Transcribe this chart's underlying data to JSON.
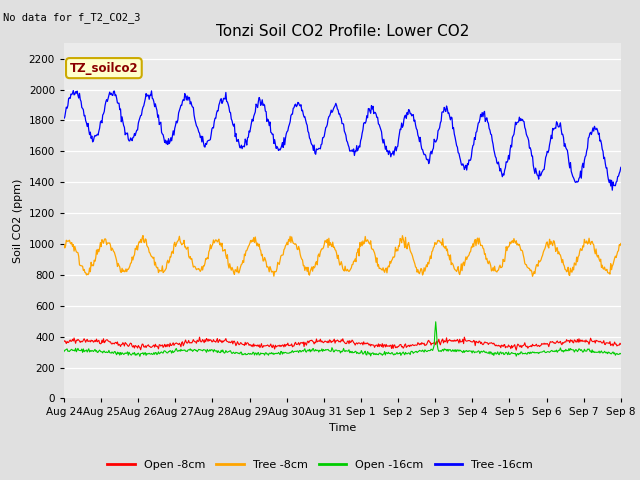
{
  "title": "Tonzi Soil CO2 Profile: Lower CO2",
  "subtitle": "No data for f_T2_CO2_3",
  "ylabel": "Soil CO2 (ppm)",
  "xlabel": "Time",
  "legend_label": "TZ_soilco2",
  "ylim": [
    0,
    2300
  ],
  "yticks": [
    0,
    200,
    400,
    600,
    800,
    1000,
    1200,
    1400,
    1600,
    1800,
    2000,
    2200
  ],
  "xtick_labels": [
    "Aug 24",
    "Aug 25",
    "Aug 26",
    "Aug 27",
    "Aug 28",
    "Aug 29",
    "Aug 30",
    "Aug 31",
    "Sep 1",
    "Sep 2",
    "Sep 3",
    "Sep 4",
    "Sep 5",
    "Sep 6",
    "Sep 7",
    "Sep 8"
  ],
  "series_labels": [
    "Open -8cm",
    "Tree -8cm",
    "Open -16cm",
    "Tree -16cm"
  ],
  "series_colors": [
    "#ff0000",
    "#ffa500",
    "#00cc00",
    "#0000ff"
  ],
  "background_color": "#e0e0e0",
  "plot_bg_color": "#ebebeb",
  "title_fontsize": 11,
  "label_fontsize": 8,
  "tick_fontsize": 7.5,
  "subtitle_fontsize": 7.5,
  "legend_fontsize": 8
}
